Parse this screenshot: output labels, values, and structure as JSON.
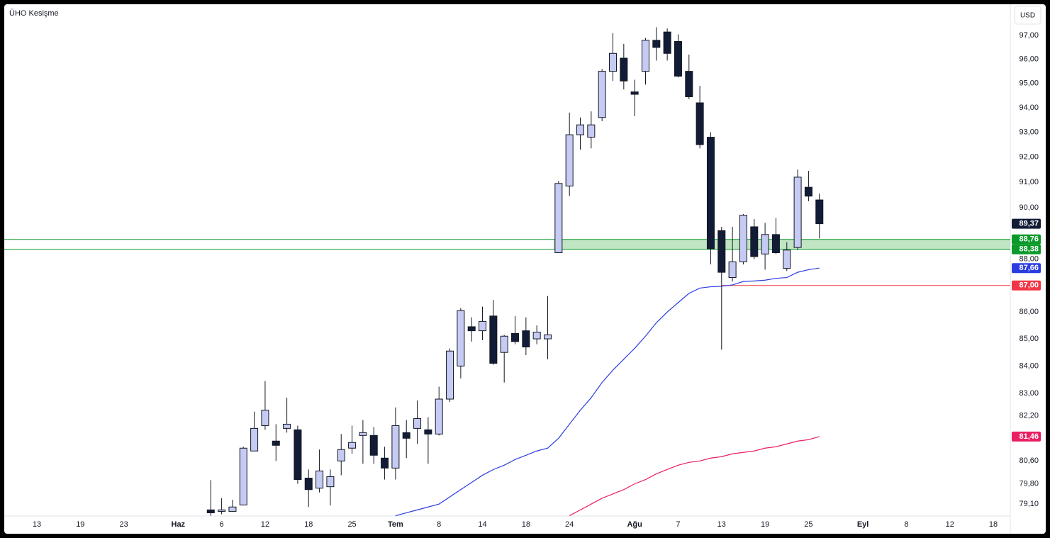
{
  "chart_data": {
    "type": "candlestick",
    "title": "ÜHO Kesişme",
    "currency": "USD",
    "log_scale": true,
    "grid": false,
    "ylim": [
      78.69,
      98.27
    ],
    "yticks": [
      {
        "value": 97,
        "label": "97,00"
      },
      {
        "value": 96,
        "label": "96,00"
      },
      {
        "value": 95,
        "label": "95,00"
      },
      {
        "value": 94,
        "label": "94,00"
      },
      {
        "value": 93,
        "label": "93,00"
      },
      {
        "value": 92,
        "label": "92,00"
      },
      {
        "value": 91,
        "label": "91,00"
      },
      {
        "value": 90,
        "label": "90,00"
      },
      {
        "value": 88,
        "label": "88,00"
      },
      {
        "value": 86,
        "label": "86,00"
      },
      {
        "value": 85,
        "label": "85,00"
      },
      {
        "value": 84,
        "label": "84,00"
      },
      {
        "value": 83,
        "label": "83,00"
      },
      {
        "value": 82.2,
        "label": "82,20"
      },
      {
        "value": 80.6,
        "label": "80,60"
      },
      {
        "value": 79.8,
        "label": "79,80"
      },
      {
        "value": 79.1,
        "label": "79,10"
      }
    ],
    "categories": [
      null,
      null,
      "13",
      null,
      null,
      null,
      "19",
      null,
      null,
      null,
      "23",
      null,
      null,
      null,
      null,
      "Haz",
      null,
      null,
      null,
      "6",
      null,
      null,
      null,
      "12",
      null,
      null,
      null,
      "18",
      null,
      null,
      null,
      "25",
      null,
      null,
      null,
      "Tem",
      null,
      null,
      null,
      "8",
      null,
      null,
      null,
      "14",
      null,
      null,
      null,
      "18",
      null,
      null,
      null,
      "24",
      null,
      null,
      null,
      null,
      null,
      "Ağu",
      null,
      null,
      null,
      "7",
      null,
      null,
      null,
      "13",
      null,
      null,
      null,
      "19",
      null,
      null,
      null,
      "25",
      null,
      null,
      null,
      null,
      "Eyl",
      null,
      null,
      null,
      "8",
      null,
      null,
      null,
      "12",
      null,
      null,
      null,
      "18",
      null
    ],
    "open": [
      null,
      null,
      null,
      null,
      null,
      null,
      null,
      null,
      null,
      null,
      null,
      null,
      null,
      null,
      null,
      null,
      null,
      null,
      78.9,
      78.85,
      78.85,
      79.07,
      80.95,
      81.85,
      81.3,
      81.75,
      81.7,
      80.0,
      79.65,
      79.7,
      80.6,
      81.05,
      81.5,
      81.5,
      80.7,
      80.35,
      81.6,
      81.75,
      81.7,
      81.55,
      82.8,
      84.0,
      85.45,
      85.3,
      85.85,
      84.5,
      85.2,
      85.3,
      85.0,
      85.0,
      88.25,
      90.85,
      92.9,
      92.8,
      93.6,
      95.5,
      96.05,
      94.65,
      95.5,
      96.8,
      97.15,
      96.75,
      95.5,
      94.2,
      92.8,
      89.1,
      87.3,
      87.9,
      89.25,
      88.2,
      88.95,
      87.65,
      88.45,
      90.8,
      90.3,
      null,
      null,
      null,
      null,
      null,
      null,
      null,
      null,
      null,
      null,
      null,
      null,
      null,
      null,
      null,
      null,
      null
    ],
    "high": [
      null,
      null,
      null,
      null,
      null,
      null,
      null,
      null,
      null,
      null,
      null,
      null,
      null,
      null,
      null,
      null,
      null,
      null,
      79.93,
      79.3,
      79.25,
      81.1,
      82.35,
      83.45,
      81.9,
      82.85,
      81.85,
      80.3,
      81.0,
      80.3,
      81.55,
      81.85,
      82.05,
      81.8,
      81.1,
      82.5,
      82.05,
      82.75,
      82.15,
      83.25,
      84.65,
      86.15,
      85.8,
      86.2,
      86.45,
      85.15,
      85.85,
      85.8,
      85.5,
      86.6,
      91.05,
      93.8,
      93.6,
      93.85,
      95.6,
      97.1,
      96.65,
      95.15,
      96.9,
      97.35,
      97.3,
      97.05,
      96.2,
      94.9,
      93.0,
      89.25,
      89.25,
      89.75,
      89.55,
      89.4,
      89.6,
      88.65,
      91.5,
      91.45,
      90.55,
      null,
      null,
      null,
      null,
      null,
      null,
      null,
      null,
      null,
      null,
      null,
      null,
      null,
      null,
      null,
      null,
      null
    ],
    "low": [
      null,
      null,
      null,
      null,
      null,
      null,
      null,
      null,
      null,
      null,
      null,
      null,
      null,
      null,
      null,
      null,
      null,
      null,
      78.7,
      78.75,
      78.85,
      79.07,
      80.95,
      81.7,
      80.6,
      81.6,
      79.8,
      79.0,
      79.5,
      79.05,
      80.1,
      80.85,
      80.5,
      80.5,
      79.95,
      79.95,
      80.7,
      81.2,
      80.5,
      81.5,
      82.7,
      83.55,
      84.9,
      84.95,
      84.05,
      83.4,
      84.8,
      84.4,
      84.8,
      84.25,
      88.25,
      90.45,
      92.3,
      92.35,
      93.45,
      95.1,
      94.75,
      93.65,
      94.95,
      95.95,
      95.95,
      95.25,
      94.35,
      92.35,
      87.8,
      84.6,
      87.15,
      87.8,
      88.0,
      87.6,
      88.2,
      87.55,
      88.35,
      90.25,
      88.8,
      null,
      null,
      null,
      null,
      null,
      null,
      null,
      null,
      null,
      null,
      null,
      null,
      null,
      null,
      null,
      null,
      null
    ],
    "close": [
      null,
      null,
      null,
      null,
      null,
      null,
      null,
      null,
      null,
      null,
      null,
      null,
      null,
      null,
      null,
      null,
      null,
      null,
      78.8,
      78.9,
      79.0,
      81.05,
      81.75,
      82.4,
      81.15,
      81.9,
      79.95,
      79.6,
      80.25,
      80.05,
      81.0,
      81.25,
      81.6,
      80.8,
      80.35,
      81.85,
      81.4,
      82.1,
      81.55,
      82.8,
      84.55,
      86.05,
      85.3,
      85.65,
      84.1,
      85.1,
      84.9,
      84.7,
      85.25,
      85.15,
      90.95,
      92.9,
      93.3,
      93.3,
      95.5,
      96.25,
      95.1,
      94.55,
      96.8,
      96.5,
      96.25,
      95.3,
      94.45,
      92.5,
      88.4,
      87.5,
      87.9,
      89.7,
      88.1,
      88.95,
      88.25,
      88.35,
      91.2,
      90.45,
      89.37,
      null,
      null,
      null,
      null,
      null,
      null,
      null,
      null,
      null,
      null,
      null,
      null,
      null,
      null,
      null,
      null,
      null
    ],
    "close_last_label": "89,37",
    "up_color": "#c5cbf3",
    "down_color": "#131c36",
    "wick_color": "#131722",
    "moving_averages": [
      {
        "color": "#2b3de0",
        "last_label": "87,66",
        "values": [
          null,
          null,
          null,
          null,
          null,
          null,
          null,
          null,
          null,
          null,
          null,
          null,
          null,
          null,
          null,
          null,
          null,
          null,
          null,
          null,
          null,
          null,
          null,
          null,
          null,
          null,
          null,
          null,
          null,
          null,
          null,
          null,
          null,
          null,
          null,
          78.7,
          78.8,
          78.9,
          79.0,
          79.1,
          79.35,
          79.6,
          79.85,
          80.1,
          80.3,
          80.45,
          80.65,
          80.8,
          80.95,
          81.05,
          81.4,
          81.9,
          82.4,
          82.85,
          83.4,
          83.85,
          84.25,
          84.65,
          85.1,
          85.6,
          86.0,
          86.35,
          86.7,
          86.9,
          86.95,
          86.97,
          87.02,
          87.15,
          87.17,
          87.2,
          87.27,
          87.3,
          87.5,
          87.6,
          87.66,
          null,
          null,
          null,
          null,
          null,
          null,
          null,
          null,
          null,
          null,
          null,
          null,
          null,
          null,
          null,
          null,
          null
        ]
      },
      {
        "color": "#e91e63",
        "last_label": "81,46",
        "values": [
          null,
          null,
          null,
          null,
          null,
          null,
          null,
          null,
          null,
          null,
          null,
          null,
          null,
          null,
          null,
          null,
          null,
          null,
          null,
          null,
          null,
          null,
          null,
          null,
          null,
          null,
          null,
          null,
          null,
          null,
          null,
          null,
          null,
          null,
          null,
          null,
          null,
          null,
          null,
          null,
          null,
          null,
          null,
          null,
          null,
          null,
          null,
          null,
          null,
          null,
          null,
          78.7,
          78.9,
          79.1,
          79.3,
          79.45,
          79.6,
          79.8,
          79.95,
          80.15,
          80.3,
          80.45,
          80.55,
          80.6,
          80.7,
          80.75,
          80.85,
          80.9,
          80.95,
          81.05,
          81.1,
          81.2,
          81.3,
          81.35,
          81.46,
          null,
          null,
          null,
          null,
          null,
          null,
          null,
          null,
          null,
          null,
          null,
          null,
          null,
          null,
          null,
          null,
          null
        ]
      }
    ],
    "zone": {
      "low": 88.38,
      "high": 88.76,
      "low_label": "88,38",
      "high_label": "88,76",
      "color": "#0a9a2a",
      "fill": "#a9dcae"
    },
    "level": {
      "value": 87,
      "label": "87,00",
      "color": "#f23645"
    }
  }
}
